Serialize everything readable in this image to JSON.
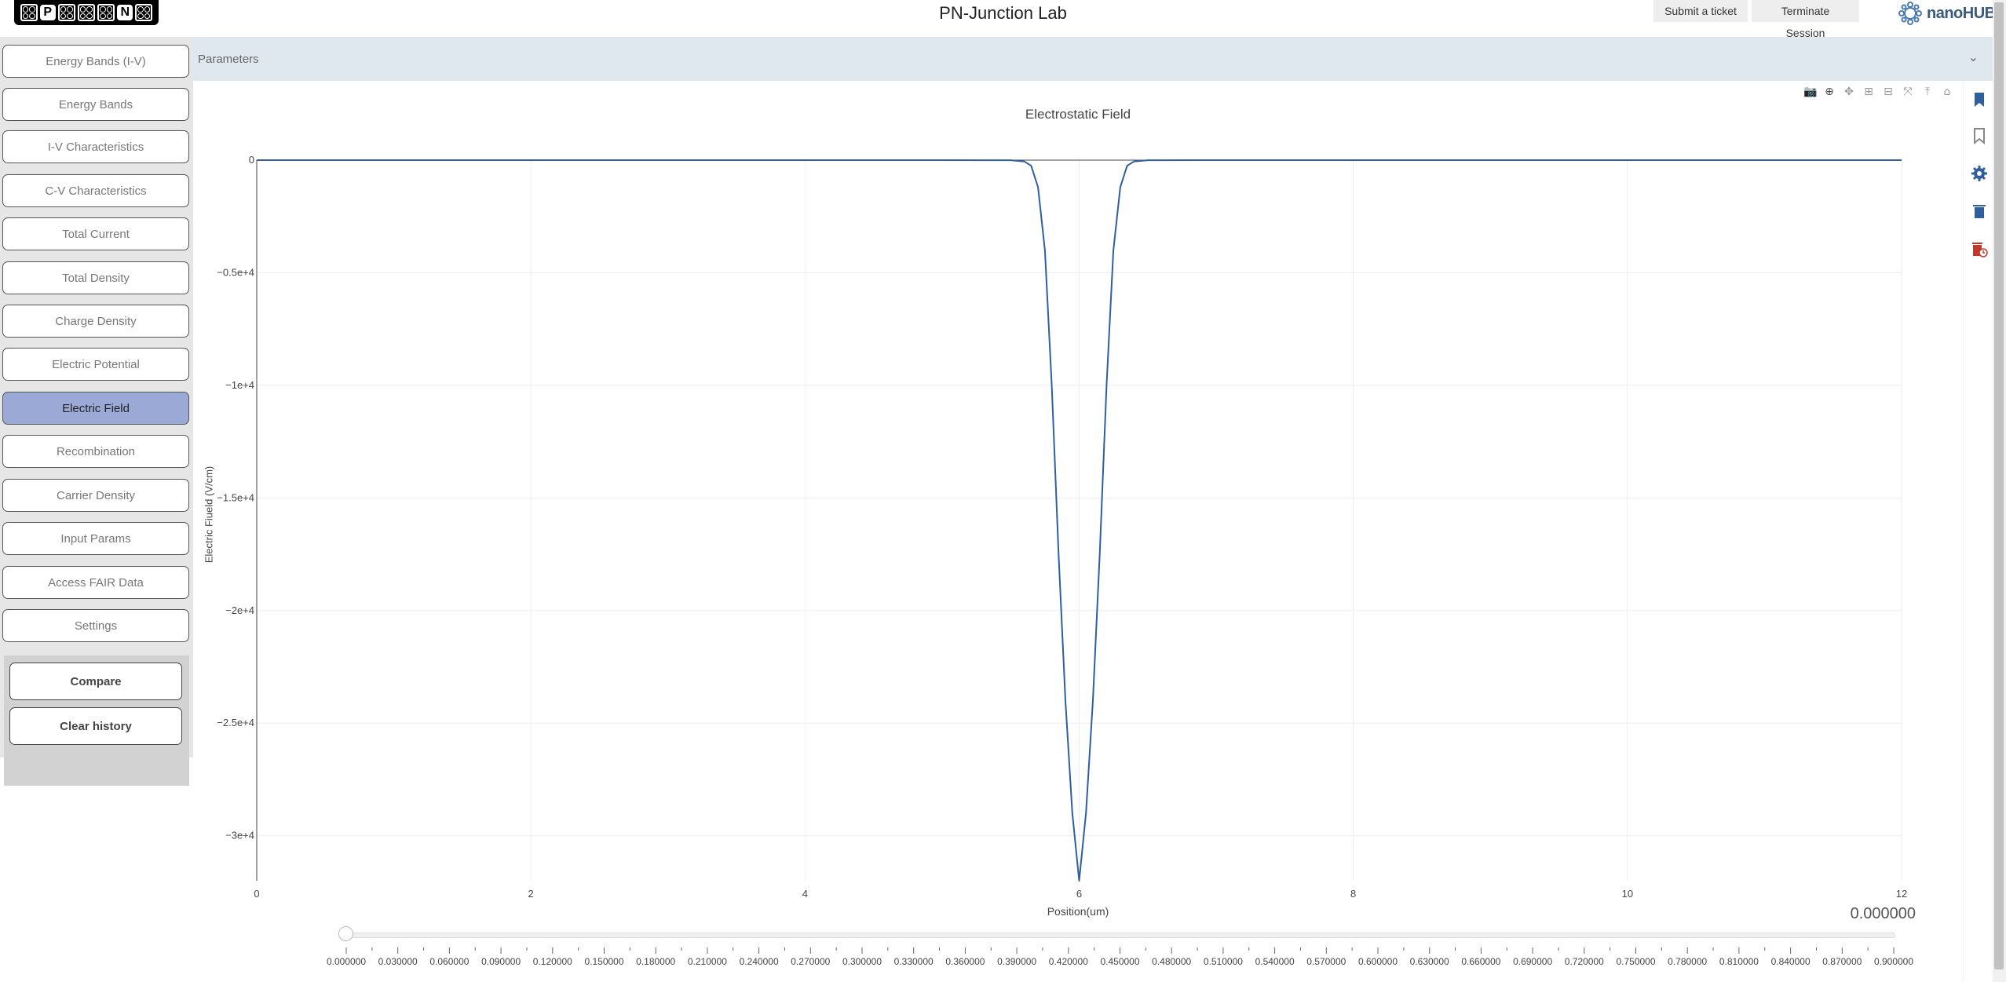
{
  "header": {
    "logo_letters": [
      "P",
      "N"
    ],
    "title": "PN-Junction Lab",
    "submit_ticket": "Submit a ticket",
    "terminate_session": "Terminate Session",
    "brand": "nanoHUB"
  },
  "sidebar": {
    "items": [
      {
        "label": "Energy Bands (I-V)",
        "active": false
      },
      {
        "label": "Energy Bands",
        "active": false
      },
      {
        "label": "I-V Characteristics",
        "active": false
      },
      {
        "label": "C-V Characteristics",
        "active": false
      },
      {
        "label": "Total Current",
        "active": false
      },
      {
        "label": "Total Density",
        "active": false
      },
      {
        "label": "Charge Density",
        "active": false
      },
      {
        "label": "Electric Potential",
        "active": false
      },
      {
        "label": "Electric Field",
        "active": true
      },
      {
        "label": "Recombination",
        "active": false
      },
      {
        "label": "Carrier Density",
        "active": false
      },
      {
        "label": "Input Params",
        "active": false
      },
      {
        "label": "Access FAIR Data",
        "active": false
      },
      {
        "label": "Settings",
        "active": false
      }
    ],
    "compare": "Compare",
    "clear_history": "Clear history"
  },
  "parameters": {
    "label": "Parameters"
  },
  "modebar_icons": [
    "camera-icon",
    "zoom-icon",
    "pan-icon",
    "zoom-in-icon",
    "zoom-out-icon",
    "autoscale-icon",
    "reset-axes-icon",
    "home-icon"
  ],
  "side_tools": [
    "bookmark-icon",
    "bookmark-outline-icon",
    "gear-icon",
    "trash-icon",
    "trash-clock-icon"
  ],
  "colors": {
    "line": "#2f5f9e",
    "active_nav": "#9aa9d6",
    "params_bar": "#dfe8ef"
  },
  "chart_data": {
    "type": "line",
    "title": "Electrostatic Field",
    "xlabel": "Position(um)",
    "ylabel": "Electric Fiueld (V/cm)",
    "xlim": [
      0,
      12
    ],
    "ylim": [
      -32000,
      0
    ],
    "xticks": [
      {
        "v": 0,
        "label": "0"
      },
      {
        "v": 2,
        "label": "2"
      },
      {
        "v": 4,
        "label": "4"
      },
      {
        "v": 6,
        "label": "6"
      },
      {
        "v": 8,
        "label": "8"
      },
      {
        "v": 10,
        "label": "10"
      },
      {
        "v": 12,
        "label": "12"
      }
    ],
    "yticks": [
      {
        "v": 0,
        "label": "0"
      },
      {
        "v": -5000,
        "label": "−0.5e+4"
      },
      {
        "v": -10000,
        "label": "−1e+4"
      },
      {
        "v": -15000,
        "label": "−1.5e+4"
      },
      {
        "v": -20000,
        "label": "−2e+4"
      },
      {
        "v": -25000,
        "label": "−2.5e+4"
      },
      {
        "v": -30000,
        "label": "−3e+4"
      }
    ],
    "grid": true,
    "series": [
      {
        "x": [
          0,
          5.0,
          5.5,
          5.6,
          5.65,
          5.7,
          5.75,
          5.8,
          5.85,
          5.9,
          5.95,
          6.0,
          6.05,
          6.1,
          6.15,
          6.2,
          6.25,
          6.3,
          6.35,
          6.4,
          6.5,
          7.0,
          12
        ],
        "y": [
          0,
          0,
          -5,
          -60,
          -250,
          -1200,
          -4000,
          -10000,
          -17500,
          -24000,
          -29000,
          -32000,
          -29000,
          -24000,
          -17500,
          -10000,
          -4000,
          -1200,
          -250,
          -60,
          -5,
          0,
          0
        ]
      }
    ]
  },
  "slider": {
    "value": "0.000000",
    "min": 0,
    "max": 0.9,
    "current": 0,
    "tick_labels": [
      "0.000000",
      "0.030000",
      "0.060000",
      "0.090000",
      "0.120000",
      "0.150000",
      "0.180000",
      "0.210000",
      "0.240000",
      "0.270000",
      "0.300000",
      "0.330000",
      "0.360000",
      "0.390000",
      "0.420000",
      "0.450000",
      "0.480000",
      "0.510000",
      "0.540000",
      "0.570000",
      "0.600000",
      "0.630000",
      "0.660000",
      "0.690000",
      "0.720000",
      "0.750000",
      "0.780000",
      "0.810000",
      "0.840000",
      "0.870000",
      "0.900000"
    ]
  }
}
